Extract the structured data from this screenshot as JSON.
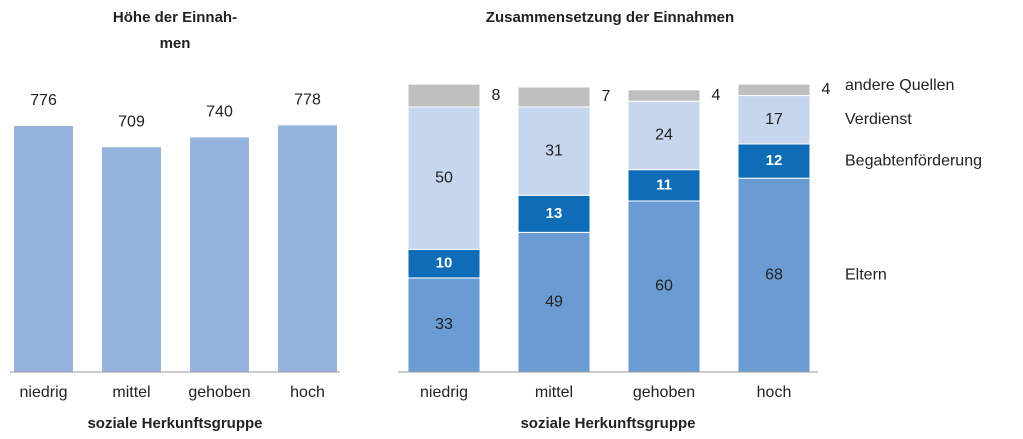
{
  "chart_data": [
    {
      "type": "bar",
      "title": [
        "Höhe der Einnah-",
        "men"
      ],
      "categories": [
        "niedrig",
        "mittel",
        "gehoben",
        "hoch"
      ],
      "values": [
        776,
        709,
        740,
        778
      ],
      "color": "#95b3dc",
      "ylim": [
        0,
        1000
      ],
      "x_label": "soziale Herkunftsgruppe"
    },
    {
      "type": "stacked_bar",
      "title": [
        "Zusammensetzung der Einnahmen"
      ],
      "categories": [
        "niedrig",
        "mittel",
        "gehoben",
        "hoch"
      ],
      "series": [
        {
          "name": "Eltern",
          "color": "#6a9bd3",
          "values": [
            33,
            49,
            60,
            68
          ]
        },
        {
          "name": "Begabtenförderung",
          "color": "#0f6cb6",
          "values": [
            10,
            13,
            11,
            12
          ]
        },
        {
          "name": "Verdienst",
          "color": "#c6d6ee",
          "values": [
            50,
            31,
            24,
            17
          ]
        },
        {
          "name": "andere Quellen",
          "color": "#bfbfbf",
          "values": [
            8,
            7,
            4,
            4
          ]
        }
      ],
      "ylim": [
        0,
        100
      ],
      "x_label": "soziale Herkunftsgruppe"
    }
  ]
}
